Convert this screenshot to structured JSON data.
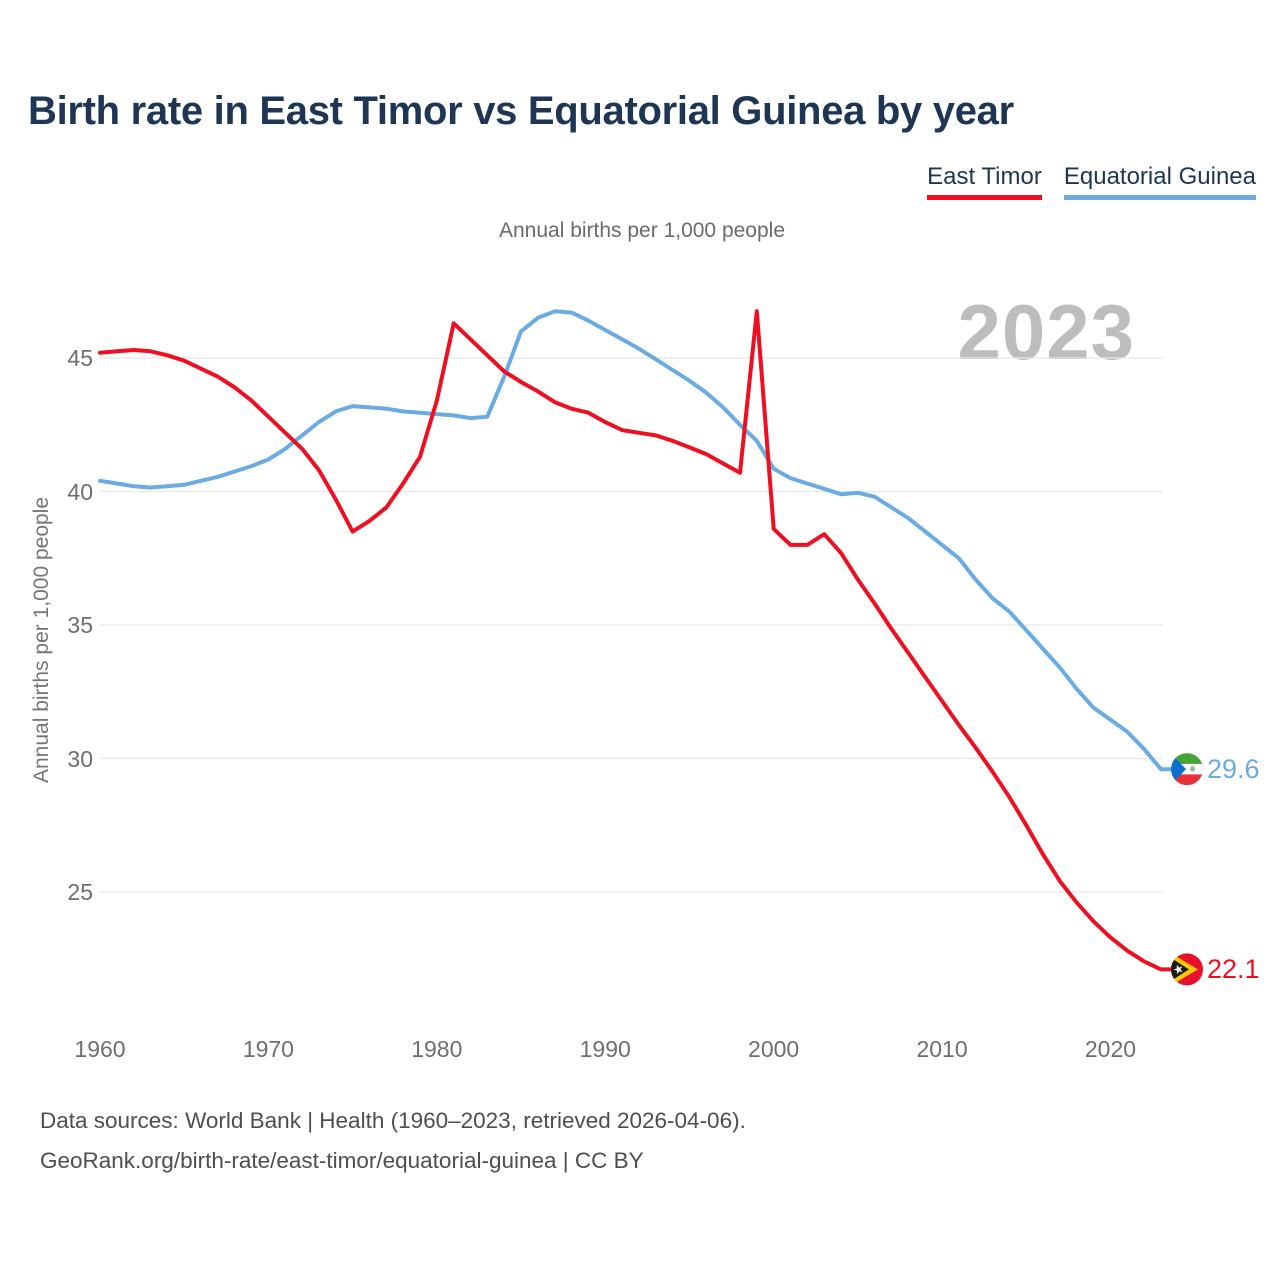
{
  "header": {
    "title": "Birth rate in East Timor vs Equatorial Guinea by year"
  },
  "legend": {
    "items": [
      {
        "label": "East Timor",
        "color": "#ee1021",
        "text_color": "#1e3553"
      },
      {
        "label": "Equatorial Guinea",
        "color": "#6aabe4",
        "text_color": "#1e3553"
      }
    ]
  },
  "chart": {
    "subtitle": "Annual births per 1,000 people",
    "watermark": "2023",
    "y_axis": {
      "title": "Annual births per 1,000 people",
      "ticks": [
        45,
        40,
        35,
        30,
        25
      ]
    },
    "x_axis": {
      "ticks": [
        1960,
        1970,
        1980,
        1990,
        2000,
        2010,
        2020
      ]
    },
    "end_labels": {
      "east_timor": "22.1",
      "equatorial_guinea": "29.6"
    }
  },
  "chart_data": {
    "type": "line",
    "title": "Birth rate in East Timor vs Equatorial Guinea by year",
    "subtitle": "Annual births per 1,000 people",
    "ylabel": "Annual births per 1,000 people",
    "xlabel": "",
    "ylim": [
      22,
      47
    ],
    "xlim": [
      1960,
      2023
    ],
    "grid": "horizontal",
    "legend_position": "top-right",
    "x": [
      1960,
      1961,
      1962,
      1963,
      1964,
      1965,
      1966,
      1967,
      1968,
      1969,
      1970,
      1971,
      1972,
      1973,
      1974,
      1975,
      1976,
      1977,
      1978,
      1979,
      1980,
      1981,
      1982,
      1983,
      1984,
      1985,
      1986,
      1987,
      1988,
      1989,
      1990,
      1991,
      1992,
      1993,
      1994,
      1995,
      1996,
      1997,
      1998,
      1999,
      2000,
      2001,
      2002,
      2003,
      2004,
      2005,
      2006,
      2007,
      2008,
      2009,
      2010,
      2011,
      2012,
      2013,
      2014,
      2015,
      2016,
      2017,
      2018,
      2019,
      2020,
      2021,
      2022,
      2023
    ],
    "series": [
      {
        "name": "East Timor",
        "color": "#ee1021",
        "flag": "east-timor",
        "end_value": 22.1,
        "values": [
          45.2,
          45.25,
          45.3,
          45.25,
          45.1,
          44.9,
          44.6,
          44.3,
          43.9,
          43.4,
          42.8,
          42.2,
          41.6,
          40.8,
          39.7,
          38.5,
          38.9,
          39.4,
          40.3,
          41.3,
          43.4,
          46.3,
          45.7,
          45.1,
          44.5,
          44.1,
          43.75,
          43.35,
          43.1,
          42.95,
          42.6,
          42.3,
          42.2,
          42.1,
          41.9,
          41.65,
          41.4,
          41.05,
          40.7,
          46.75,
          38.6,
          38.0,
          38.0,
          38.4,
          37.7,
          36.7,
          35.8,
          34.85,
          33.95,
          33.05,
          32.15,
          31.25,
          30.4,
          29.5,
          28.55,
          27.5,
          26.4,
          25.4,
          24.6,
          23.9,
          23.3,
          22.8,
          22.4,
          22.1
        ]
      },
      {
        "name": "Equatorial Guinea",
        "color": "#6aabe4",
        "flag": "equatorial-guinea",
        "end_value": 29.6,
        "values": [
          40.4,
          40.3,
          40.2,
          40.15,
          40.2,
          40.25,
          40.4,
          40.55,
          40.75,
          40.95,
          41.2,
          41.6,
          42.1,
          42.6,
          43.0,
          43.2,
          43.15,
          43.1,
          43.0,
          42.95,
          42.9,
          42.85,
          42.75,
          42.8,
          44.3,
          46.0,
          46.5,
          46.75,
          46.7,
          46.4,
          46.05,
          45.7,
          45.35,
          44.95,
          44.55,
          44.15,
          43.7,
          43.15,
          42.5,
          41.9,
          40.85,
          40.5,
          40.3,
          40.1,
          39.9,
          39.95,
          39.8,
          39.4,
          39.0,
          38.5,
          38.0,
          37.5,
          36.7,
          36.0,
          35.5,
          34.8,
          34.1,
          33.4,
          32.6,
          31.9,
          31.45,
          31.0,
          30.35,
          29.6
        ]
      }
    ]
  },
  "footer": {
    "line1": "Data sources: World Bank | Health (1960–2023, retrieved 2026-04-06).",
    "line2": "GeoRank.org/birth-rate/east-timor/equatorial-guinea | CC BY"
  }
}
